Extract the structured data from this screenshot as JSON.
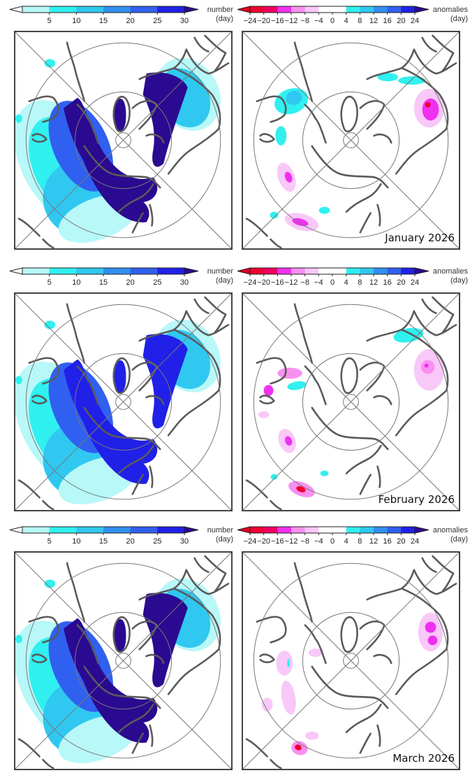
{
  "chart_data": [
    {
      "type": "heatmap",
      "projection": "north-polar-stereographic",
      "panels": [
        {
          "period": "January 2026",
          "field": "number",
          "label": ""
        },
        {
          "period": "January 2026",
          "field": "anomalies",
          "label": "January 2026"
        },
        {
          "period": "February 2026",
          "field": "number",
          "label": ""
        },
        {
          "period": "February 2026",
          "field": "anomalies",
          "label": "February 2026"
        },
        {
          "period": "March 2026",
          "field": "number",
          "label": ""
        },
        {
          "period": "March 2026",
          "field": "anomalies",
          "label": "March 2026"
        }
      ]
    }
  ],
  "colorbars": {
    "number": {
      "title_line1": "number",
      "title_line2": "(day)",
      "ticks": [
        "5",
        "10",
        "15",
        "20",
        "25",
        "30"
      ],
      "colors": [
        "#b8f8f8",
        "#30f0f0",
        "#30c8f0",
        "#3090f0",
        "#3060f0",
        "#2020e8"
      ],
      "under_color": "#ffffff",
      "over_color": "#2a0a90"
    },
    "anomalies": {
      "title_line1": "anomalies",
      "title_line2": "(day)",
      "ticks": [
        "−24",
        "−20",
        "−16",
        "−12",
        "−8",
        "−4",
        "0",
        "4",
        "8",
        "12",
        "16",
        "20",
        "24"
      ],
      "colors": [
        "#f00030",
        "#f00060",
        "#f030f0",
        "#f890f0",
        "#f8c8f8",
        "#ffffff",
        "#ffffff",
        "#30f0f0",
        "#30c8f0",
        "#3090f0",
        "#3060f0",
        "#2020e8"
      ],
      "under_color": "#e00020",
      "over_color": "#2a0a90"
    }
  },
  "rows": [
    {
      "month_label": "January 2026"
    },
    {
      "month_label": "February 2026"
    },
    {
      "month_label": "March 2026"
    }
  ],
  "style": {
    "coast_color": "#5a5a5a",
    "grid_color": "#777777",
    "deep_blue": "#2a0a90"
  }
}
